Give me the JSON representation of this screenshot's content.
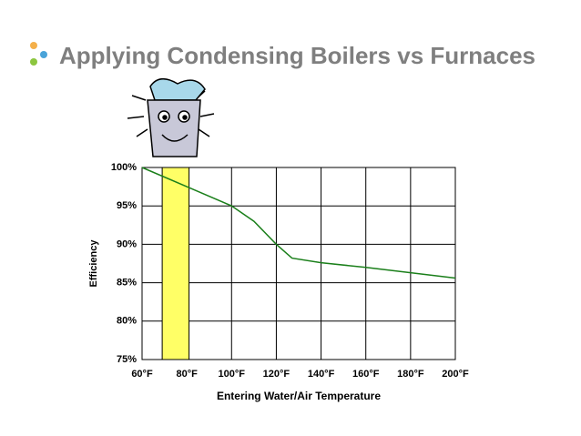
{
  "slide_title": "Applying Condensing Boilers vs Furnaces",
  "chart_data": {
    "type": "line",
    "x_label": "Entering Water/Air Temperature",
    "y_label": "Efficiency",
    "x": [
      60,
      80,
      100,
      110,
      120,
      127,
      140,
      160,
      180,
      200
    ],
    "series": [
      {
        "color": "#1a7f1a",
        "values": [
          100,
          97.5,
          95,
          93,
          90,
          88.2,
          87.6,
          87,
          86.3,
          85.6
        ]
      }
    ],
    "shaded_range": [
      69,
      81
    ],
    "shaded_color": "#ffff66",
    "xlim": [
      60,
      200
    ],
    "ylim": [
      75,
      100
    ],
    "xticks": [
      {
        "value": 60,
        "label": "60°F"
      },
      {
        "value": 80,
        "label": "80°F"
      },
      {
        "value": 100,
        "label": "100°F"
      },
      {
        "value": 120,
        "label": "120°F"
      },
      {
        "value": 140,
        "label": "140°F"
      },
      {
        "value": 160,
        "label": "160°F"
      },
      {
        "value": 180,
        "label": "180°F"
      },
      {
        "value": 200,
        "label": "200°F"
      }
    ],
    "yticks": [
      {
        "value": 75,
        "label": "75%"
      },
      {
        "value": 80,
        "label": "80%"
      },
      {
        "value": 85,
        "label": "85%"
      },
      {
        "value": 90,
        "label": "90%"
      },
      {
        "value": 95,
        "label": "95%"
      },
      {
        "value": 100,
        "label": "100%"
      }
    ],
    "grid": true
  }
}
